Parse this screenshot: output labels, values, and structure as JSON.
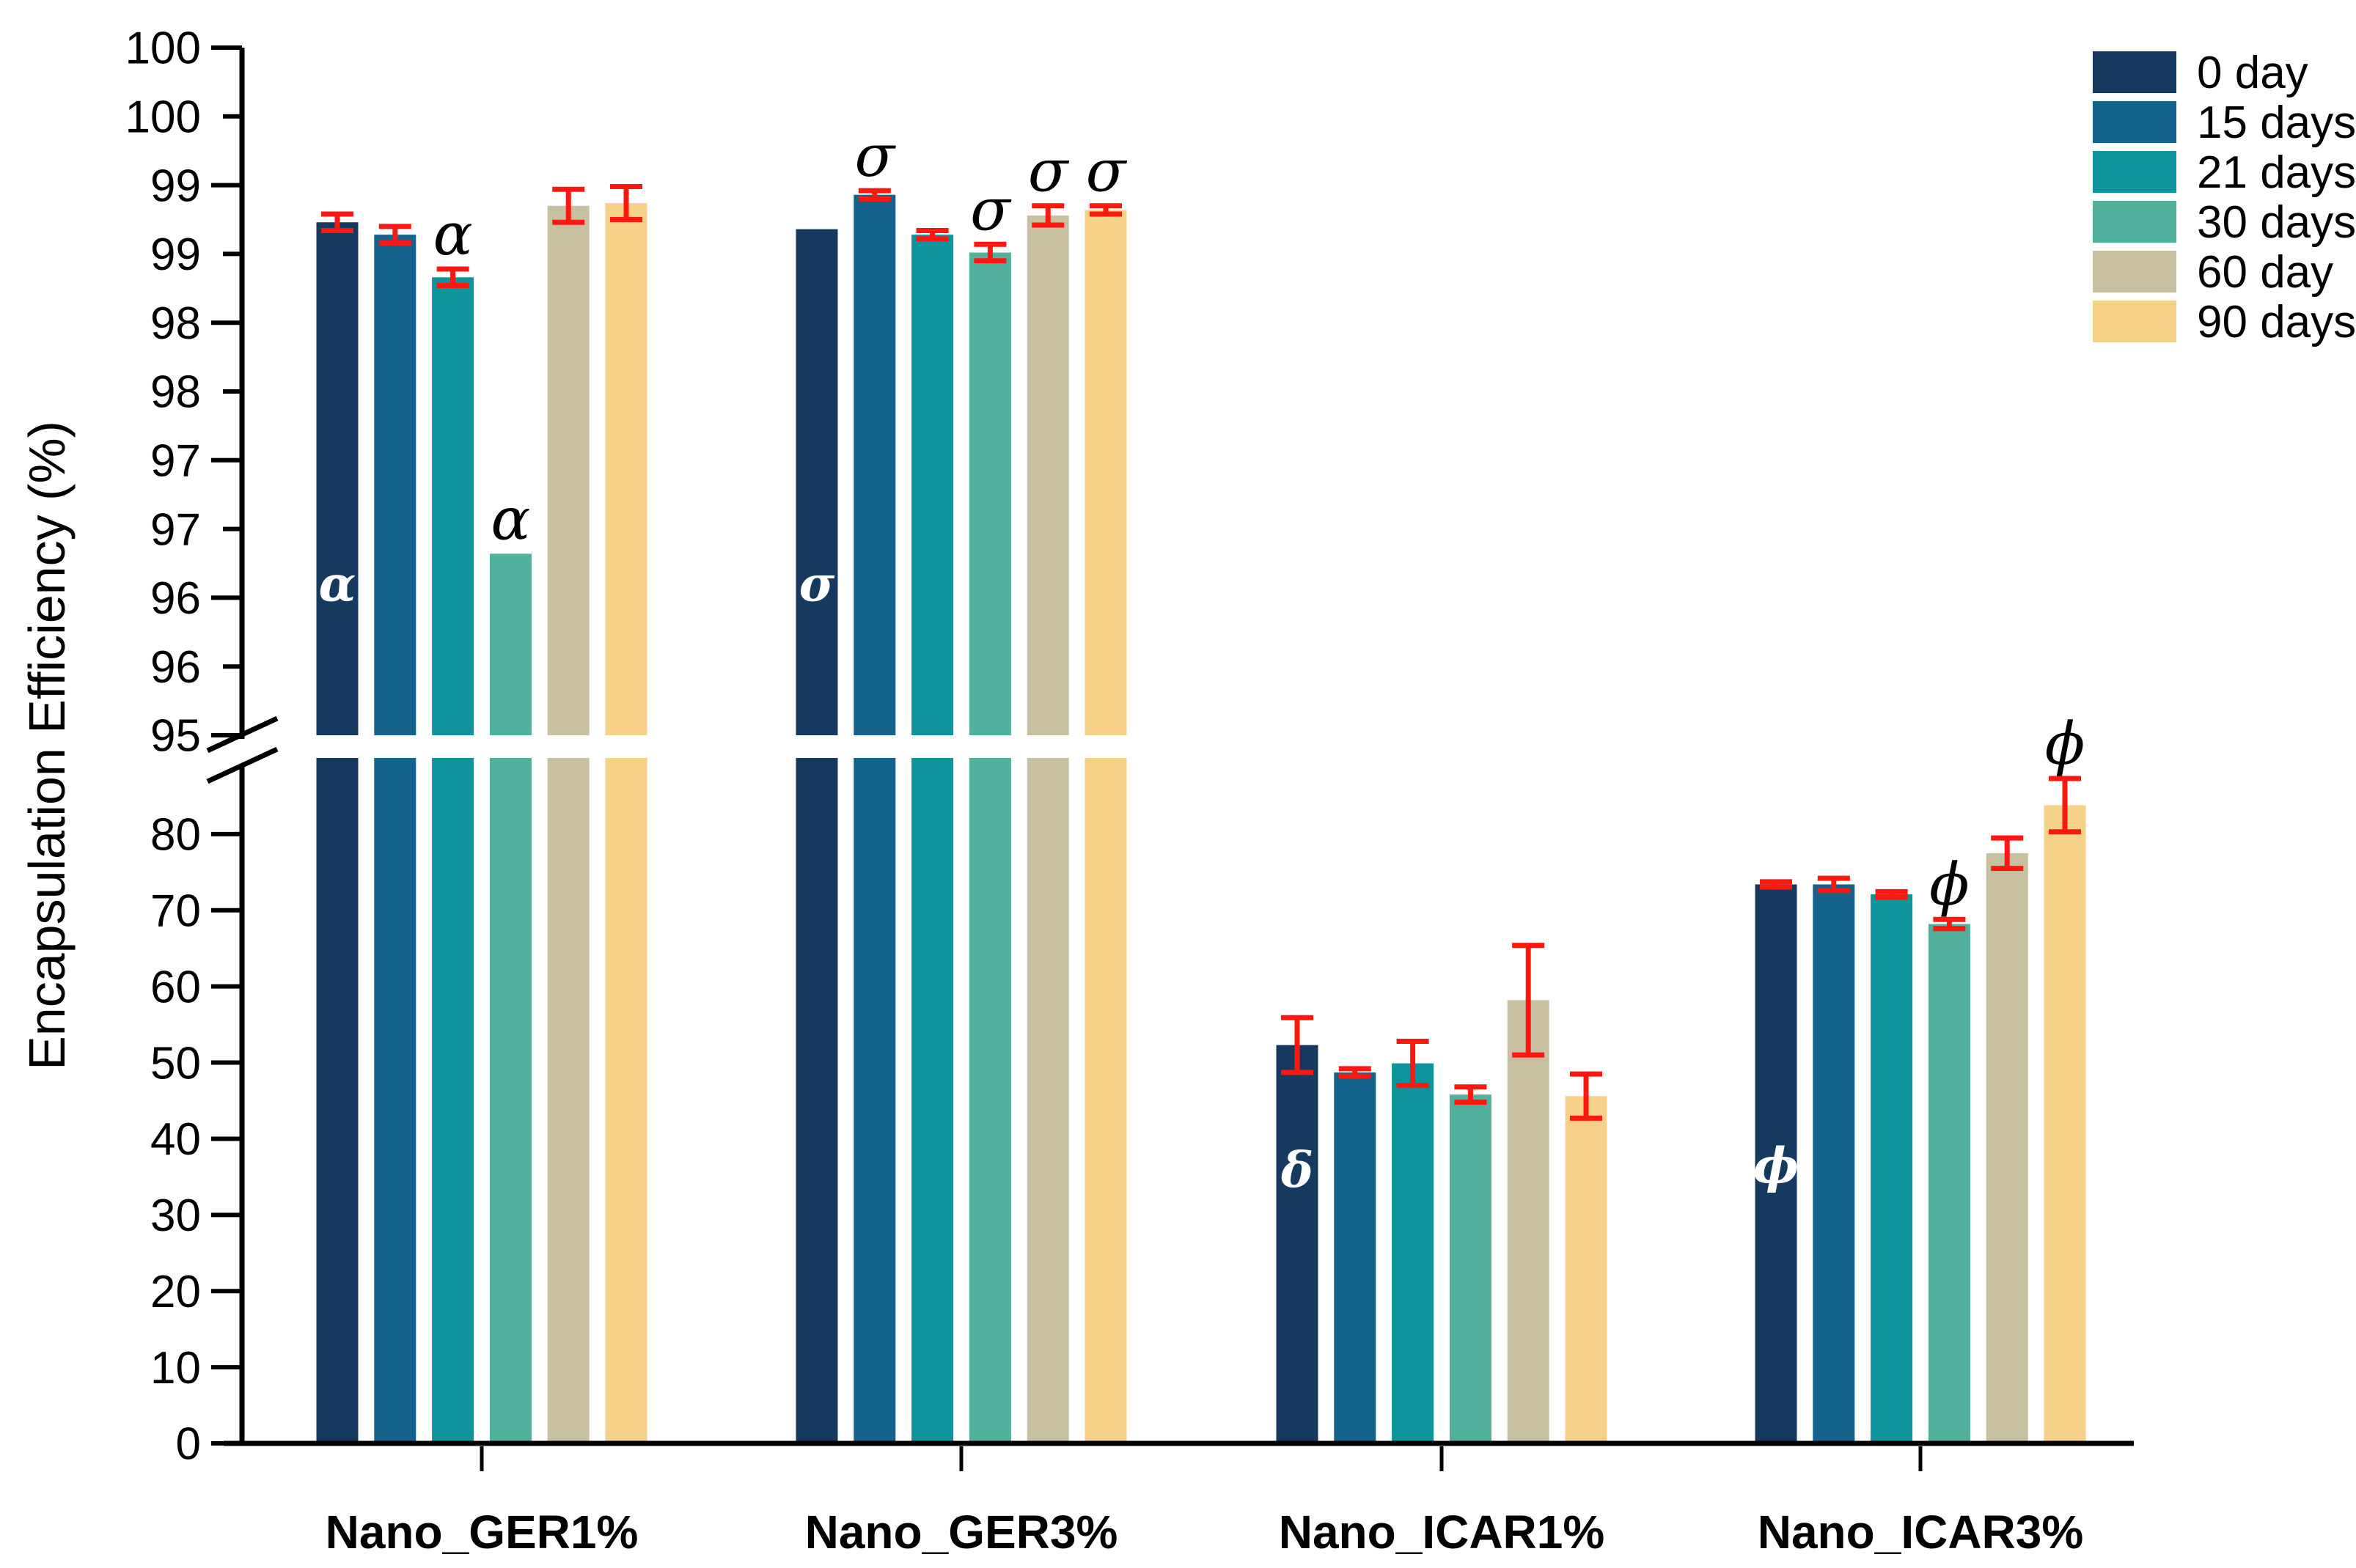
{
  "figure": {
    "background": "#ffffff",
    "axis_color": "#000000",
    "error_bar_color": "#fa1810"
  },
  "y_axis": {
    "title": "Encapsulation Efficiency (%)",
    "broken": true,
    "top_panel": {
      "min": 95,
      "max": 100,
      "tick_step": 0.5,
      "tick_values": [
        100,
        99.5,
        99,
        98.5,
        98,
        97.5,
        97,
        96.5,
        96,
        95.5,
        95
      ],
      "tick_labels": [
        "100",
        "100",
        "99",
        "99",
        "98",
        "98",
        "97",
        "97",
        "96",
        "96",
        "95"
      ]
    },
    "bottom_panel": {
      "min": 0,
      "max": 90,
      "tick_step": 10,
      "tick_values": [
        80,
        70,
        60,
        50,
        40,
        30,
        20,
        10,
        0
      ],
      "tick_labels": [
        "80",
        "70",
        "60",
        "50",
        "40",
        "30",
        "20",
        "10",
        "0"
      ]
    }
  },
  "chart_data": {
    "type": "bar",
    "title": "",
    "xlabel": "",
    "ylabel": "Encapsulation Efficiency (%)",
    "grid": false,
    "legend_position": "top-right",
    "categories": [
      "Nano_GER1%",
      "Nano_GER3%",
      "Nano_ICAR1%",
      "Nano_ICAR3%"
    ],
    "series": [
      {
        "name": "0 day",
        "color": "#16395f",
        "values": [
          98.73,
          98.68,
          52.3,
          73.4
        ],
        "errors": [
          0.06,
          0,
          3.6,
          0.35
        ]
      },
      {
        "name": "15 days",
        "color": "#15638c",
        "values": [
          98.64,
          98.93,
          48.7,
          73.4
        ],
        "errors": [
          0.06,
          0.03,
          0.5,
          0.8
        ]
      },
      {
        "name": "21 days",
        "color": "#0d949c",
        "values": [
          98.33,
          98.64,
          49.9,
          72.1
        ],
        "errors": [
          0.06,
          0.03,
          2.9,
          0.35
        ]
      },
      {
        "name": "30 days",
        "color": "#52b19c",
        "values": [
          96.32,
          98.51,
          45.8,
          68.2
        ],
        "errors": [
          0,
          0.06,
          1.0,
          0.6
        ]
      },
      {
        "name": "60 day",
        "color": "#c7c1a2",
        "values": [
          98.85,
          98.78,
          58.2,
          77.5
        ],
        "errors": [
          0.12,
          0.07,
          7.2,
          2.0
        ]
      },
      {
        "name": "90 days",
        "color": "#f6d189",
        "values": [
          98.87,
          98.82,
          45.6,
          83.8
        ],
        "errors": [
          0.12,
          0.03,
          2.9,
          3.5
        ]
      }
    ],
    "annotations": {
      "inside_first_bar": [
        {
          "group_index": 0,
          "series_index": 0,
          "symbol": "α",
          "at_value": 96.1
        },
        {
          "group_index": 1,
          "series_index": 0,
          "symbol": "σ",
          "at_value": 96.1
        },
        {
          "group_index": 2,
          "series_index": 0,
          "symbol": "δ",
          "at_value": 35.9
        },
        {
          "group_index": 3,
          "series_index": 0,
          "symbol": "ϕ",
          "at_value": 36.5
        }
      ],
      "above_bars": [
        {
          "group_index": 0,
          "series_index": 2,
          "symbol": "α"
        },
        {
          "group_index": 0,
          "series_index": 3,
          "symbol": "α"
        },
        {
          "group_index": 1,
          "series_index": 1,
          "symbol": "σ"
        },
        {
          "group_index": 1,
          "series_index": 3,
          "symbol": "σ"
        },
        {
          "group_index": 1,
          "series_index": 4,
          "symbol": "σ"
        },
        {
          "group_index": 1,
          "series_index": 5,
          "symbol": "σ"
        },
        {
          "group_index": 3,
          "series_index": 3,
          "symbol": "ϕ"
        },
        {
          "group_index": 3,
          "series_index": 5,
          "symbol": "ϕ"
        }
      ]
    }
  }
}
